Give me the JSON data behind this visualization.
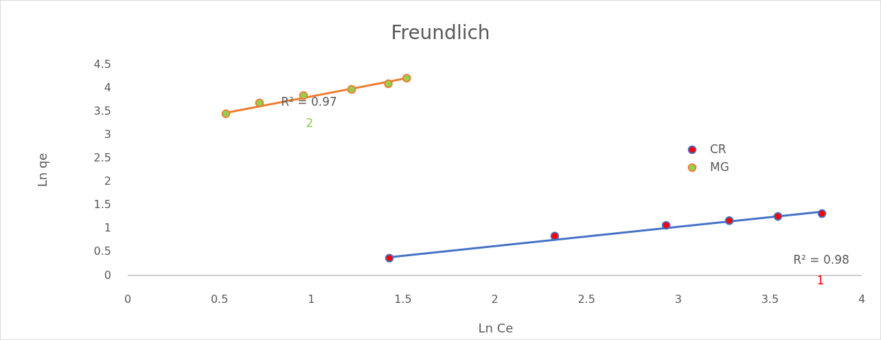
{
  "chart_data": {
    "type": "scatter",
    "title": "Freundlich",
    "xlabel": "Ln Ce",
    "ylabel": "Ln qe",
    "xlim": [
      0,
      4
    ],
    "xticks": [
      0,
      0.5,
      1,
      1.5,
      2,
      2.5,
      3,
      3.5,
      4
    ],
    "ylim": [
      0,
      4.5
    ],
    "yticks": [
      0,
      0.5,
      1,
      1.5,
      2,
      2.5,
      3,
      3.5,
      4,
      4.5
    ],
    "grid": false,
    "legend": "right",
    "series": [
      {
        "name": "CR",
        "color": "#ff0000",
        "marker": "circle",
        "x": [
          1.426,
          2.327,
          2.934,
          3.278,
          3.543,
          3.783
        ],
        "values": [
          0.37,
          0.84,
          1.07,
          1.17,
          1.26,
          1.32
        ]
      },
      {
        "name": "MG",
        "color": "#92d050",
        "marker": "circle",
        "x": [
          0.535,
          0.718,
          0.958,
          1.22,
          1.42,
          1.52
        ],
        "values": [
          3.45,
          3.68,
          3.84,
          3.97,
          4.09,
          4.21
        ]
      },
      {
        "type": "line",
        "color": "#4472c4",
        "marker": "none",
        "x": [
          1.426,
          3.783
        ],
        "values": [
          0.39,
          1.36
        ]
      },
      {
        "type": "line",
        "color": "#ed7d31",
        "marker": "none",
        "x": [
          0.535,
          1.52
        ],
        "values": [
          3.47,
          4.21
        ]
      }
    ],
    "annotations": [
      "R² = 0.98",
      "1",
      "R² = 0.97",
      "2"
    ]
  }
}
